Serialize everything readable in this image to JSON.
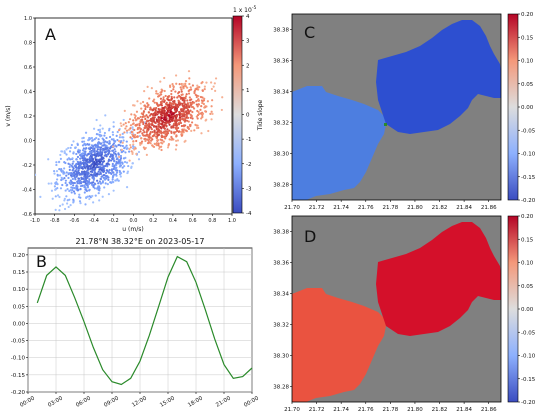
{
  "chart_data": [
    {
      "panel": "A",
      "type": "scatter",
      "xlabel": "u (m/s)",
      "ylabel": "v (m/s)",
      "xlim": [
        -1.0,
        1.0
      ],
      "ylim": [
        -0.6,
        1.0
      ],
      "xticks": [
        "-1.0",
        "-0.8",
        "-0.6",
        "-0.4",
        "-0.2",
        "0.0",
        "0.2",
        "0.4",
        "0.6",
        "0.8",
        "1.0"
      ],
      "yticks": [
        "-0.6",
        "-0.4",
        "-0.2",
        "0.0",
        "0.2",
        "0.4",
        "0.6",
        "0.8",
        "1.0"
      ],
      "colorbar": {
        "label": "Tide slope",
        "multiplier": "1 x 10",
        "exponent": "-5",
        "range": [
          -4,
          4
        ],
        "ticks": [
          "4",
          "3",
          "2",
          "1",
          "0",
          "-1",
          "-2",
          "-3",
          "-4"
        ],
        "colormap": "coolwarm"
      },
      "clusters": [
        {
          "sign": "negative",
          "u_range": [
            -0.85,
            0.0
          ],
          "v_range": [
            -0.55,
            0.1
          ],
          "center": [
            -0.4,
            -0.2
          ]
        },
        {
          "sign": "positive",
          "u_range": [
            -0.1,
            0.8
          ],
          "v_range": [
            -0.1,
            0.5
          ],
          "center": [
            0.35,
            0.2
          ]
        }
      ]
    },
    {
      "panel": "B",
      "type": "line",
      "title": "21.78°N 38.32°E on 2023-05-17",
      "ylim": [
        -0.2,
        0.22
      ],
      "yticks": [
        "0.20",
        "0.15",
        "0.10",
        "0.05",
        "0.00",
        "-0.05",
        "-0.10",
        "-0.15",
        "-0.20"
      ],
      "xticks": [
        "00:00",
        "03:00",
        "06:00",
        "09:00",
        "12:00",
        "15:00",
        "18:00",
        "21:00",
        "00:00"
      ],
      "color": "#2a8a2a",
      "x_hours": [
        1,
        2,
        3,
        4,
        5,
        6,
        7,
        8,
        9,
        10,
        11,
        12,
        13,
        14,
        15,
        16,
        17,
        18,
        19,
        20,
        21,
        22,
        23,
        24
      ],
      "values": [
        0.06,
        0.14,
        0.165,
        0.14,
        0.075,
        0.005,
        -0.07,
        -0.135,
        -0.17,
        -0.178,
        -0.16,
        -0.11,
        -0.035,
        0.05,
        0.135,
        0.195,
        0.18,
        0.12,
        0.04,
        -0.045,
        -0.12,
        -0.16,
        -0.155,
        -0.13
      ]
    },
    {
      "panel": "C",
      "type": "heatmap",
      "xticks": [
        "21.70",
        "21.72",
        "21.74",
        "21.76",
        "21.78",
        "21.80",
        "21.82",
        "21.84",
        "21.86"
      ],
      "yticks": [
        "38.38",
        "38.36",
        "38.34",
        "38.32",
        "38.30",
        "38.28"
      ],
      "xlim": [
        21.7,
        21.87
      ],
      "ylim": [
        38.27,
        38.39
      ],
      "colorbar": {
        "range": [
          -0.2,
          0.2
        ],
        "ticks": [
          "0.20",
          "0.15",
          "0.10",
          "0.05",
          "0.00",
          "-0.05",
          "-0.10",
          "-0.15",
          "-0.20"
        ]
      },
      "regions": [
        {
          "side": "left",
          "value": -0.13
        },
        {
          "side": "right",
          "value": -0.17
        }
      ]
    },
    {
      "panel": "D",
      "type": "heatmap",
      "xticks": [
        "21.70",
        "21.72",
        "21.74",
        "21.76",
        "21.78",
        "21.80",
        "21.82",
        "21.84",
        "21.86"
      ],
      "yticks": [
        "38.38",
        "38.36",
        "38.34",
        "38.32",
        "38.30",
        "38.28"
      ],
      "xlim": [
        21.7,
        21.87
      ],
      "ylim": [
        38.27,
        38.39
      ],
      "colorbar": {
        "range": [
          -0.2,
          0.2
        ],
        "ticks": [
          "0.20",
          "0.15",
          "0.10",
          "0.05",
          "0.00",
          "-0.05",
          "-0.10",
          "-0.15",
          "-0.20"
        ]
      },
      "regions": [
        {
          "side": "left",
          "value": 0.15
        },
        {
          "side": "right",
          "value": 0.19
        }
      ]
    }
  ],
  "panel_labels": {
    "a": "A",
    "b": "B",
    "c": "C",
    "d": "D"
  },
  "colors": {
    "land": "#808080",
    "neg_left": "#4d7ee0",
    "neg_right": "#2d4fd0",
    "pos_left": "#ea5340",
    "pos_right": "#d4102a"
  }
}
